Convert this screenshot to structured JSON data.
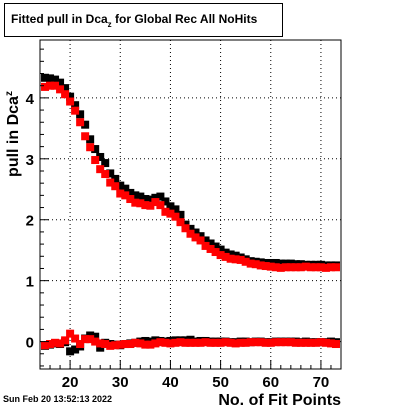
{
  "title": {
    "main": "Fitted pull in Dca",
    "subscript": "z",
    "suffix": " for Global Rec All NoHits"
  },
  "footer": {
    "timestamp": "Sun Feb 20 13:52:13 2022"
  },
  "chart_data": {
    "type": "scatter",
    "title": "Fitted pull in Dca_z for Global Rec All NoHits",
    "xlabel": "No. of Fit Points",
    "ylabel_main": "pull in Dca",
    "ylabel_subscript": "z",
    "xlim": [
      14,
      74
    ],
    "ylim": [
      -0.45,
      4.95
    ],
    "x_ticks": [
      20,
      30,
      40,
      50,
      60,
      70
    ],
    "y_ticks": [
      0,
      1,
      2,
      3,
      4
    ],
    "grid": true,
    "colors": {
      "black": "#000000",
      "red": "#ff0000"
    },
    "series": [
      {
        "color": "#000000",
        "marker": "square",
        "x": [
          15,
          16,
          17,
          18,
          19,
          20,
          21,
          22,
          23,
          24,
          25,
          26,
          27,
          28,
          29,
          30,
          31,
          32,
          33,
          34,
          35,
          36,
          37,
          38,
          39,
          40,
          41,
          42,
          43,
          44,
          45,
          46,
          47,
          48,
          49,
          50,
          51,
          52,
          53,
          54,
          55,
          56,
          57,
          58,
          59,
          60,
          61,
          62,
          63,
          64,
          65,
          66,
          67,
          68,
          69,
          70,
          71,
          72,
          73
        ],
        "y": [
          4.33,
          4.32,
          4.3,
          4.25,
          4.16,
          4.02,
          3.88,
          3.73,
          3.56,
          3.32,
          3.16,
          3.03,
          2.93,
          2.76,
          2.67,
          2.56,
          2.51,
          2.44,
          2.4,
          2.38,
          2.34,
          2.33,
          2.36,
          2.38,
          2.3,
          2.22,
          2.17,
          2.08,
          1.92,
          1.85,
          1.79,
          1.73,
          1.66,
          1.61,
          1.56,
          1.51,
          1.46,
          1.43,
          1.41,
          1.38,
          1.35,
          1.32,
          1.31,
          1.3,
          1.29,
          1.29,
          1.29,
          1.28,
          1.28,
          1.28,
          1.27,
          1.27,
          1.26,
          1.26,
          1.26,
          1.26,
          1.25,
          1.25,
          1.25
        ]
      },
      {
        "color": "#ff0000",
        "marker": "square",
        "x": [
          15,
          16,
          17,
          18,
          19,
          20,
          21,
          22,
          23,
          24,
          25,
          26,
          27,
          28,
          29,
          30,
          31,
          32,
          33,
          34,
          35,
          36,
          37,
          38,
          39,
          40,
          41,
          42,
          43,
          44,
          45,
          46,
          47,
          48,
          49,
          50,
          51,
          52,
          53,
          54,
          55,
          56,
          57,
          58,
          59,
          60,
          61,
          62,
          63,
          64,
          65,
          66,
          67,
          68,
          69,
          70,
          71,
          72,
          73
        ],
        "y": [
          4.18,
          4.2,
          4.2,
          4.14,
          4.06,
          3.94,
          3.79,
          3.6,
          3.37,
          3.19,
          2.98,
          2.83,
          2.75,
          2.61,
          2.55,
          2.43,
          2.4,
          2.34,
          2.28,
          2.27,
          2.24,
          2.23,
          2.29,
          2.24,
          2.13,
          2.1,
          2.05,
          1.96,
          1.86,
          1.77,
          1.71,
          1.66,
          1.57,
          1.52,
          1.47,
          1.42,
          1.39,
          1.36,
          1.35,
          1.34,
          1.31,
          1.28,
          1.27,
          1.25,
          1.24,
          1.23,
          1.22,
          1.21,
          1.22,
          1.22,
          1.22,
          1.22,
          1.23,
          1.22,
          1.22,
          1.22,
          1.21,
          1.22,
          1.22
        ]
      },
      {
        "color": "#000000",
        "marker": "square",
        "x": [
          15,
          16,
          17,
          18,
          19,
          20,
          21,
          22,
          23,
          24,
          25,
          26,
          27,
          28,
          29,
          30,
          31,
          32,
          33,
          34,
          35,
          36,
          37,
          38,
          39,
          40,
          41,
          42,
          43,
          44,
          45,
          46,
          47,
          48,
          49,
          50,
          51,
          52,
          53,
          54,
          55,
          56,
          57,
          58,
          59,
          60,
          61,
          62,
          63,
          64,
          65,
          66,
          67,
          68,
          69,
          70,
          71,
          72,
          73
        ],
        "y": [
          -0.07,
          -0.05,
          -0.03,
          -0.04,
          -0.01,
          -0.16,
          -0.13,
          -0.08,
          0.05,
          0.1,
          0.08,
          -0.1,
          -0.02,
          -0.04,
          -0.05,
          -0.06,
          -0.04,
          -0.03,
          -0.02,
          0.0,
          0.01,
          0.0,
          0.02,
          0.01,
          0.0,
          0.01,
          0.02,
          0.02,
          0.02,
          0.03,
          0.0,
          0.01,
          0.01,
          0.0,
          0.0,
          0.0,
          0.0,
          -0.01,
          -0.01,
          0.0,
          0.0,
          -0.01,
          0.0,
          0.0,
          -0.01,
          -0.01,
          0.0,
          0.0,
          0.0,
          0.0,
          0.0,
          -0.01,
          0.0,
          -0.01,
          -0.01,
          -0.01,
          -0.01,
          0.0,
          -0.01
        ]
      },
      {
        "color": "#ff0000",
        "marker": "square",
        "x": [
          15,
          16,
          17,
          18,
          19,
          20,
          21,
          22,
          23,
          24,
          25,
          26,
          27,
          28,
          29,
          30,
          31,
          32,
          33,
          34,
          35,
          36,
          37,
          38,
          39,
          40,
          41,
          42,
          43,
          44,
          45,
          46,
          47,
          48,
          49,
          50,
          51,
          52,
          53,
          54,
          55,
          56,
          57,
          58,
          59,
          60,
          61,
          62,
          63,
          64,
          65,
          66,
          67,
          68,
          69,
          70,
          71,
          72,
          73
        ],
        "y": [
          -0.06,
          -0.04,
          -0.02,
          -0.03,
          0.02,
          0.13,
          0.05,
          -0.04,
          0.04,
          0.04,
          0.0,
          -0.03,
          -0.04,
          -0.07,
          -0.06,
          -0.05,
          -0.04,
          -0.04,
          -0.02,
          -0.03,
          -0.05,
          -0.05,
          -0.03,
          -0.01,
          -0.02,
          -0.03,
          -0.02,
          -0.01,
          -0.02,
          -0.02,
          -0.02,
          -0.02,
          -0.01,
          -0.02,
          -0.02,
          -0.02,
          -0.01,
          -0.02,
          -0.03,
          -0.02,
          -0.02,
          -0.01,
          -0.01,
          -0.01,
          -0.02,
          -0.02,
          -0.01,
          -0.01,
          -0.01,
          -0.01,
          -0.02,
          -0.02,
          -0.02,
          -0.02,
          -0.02,
          -0.01,
          -0.02,
          -0.03,
          -0.04
        ]
      }
    ]
  }
}
